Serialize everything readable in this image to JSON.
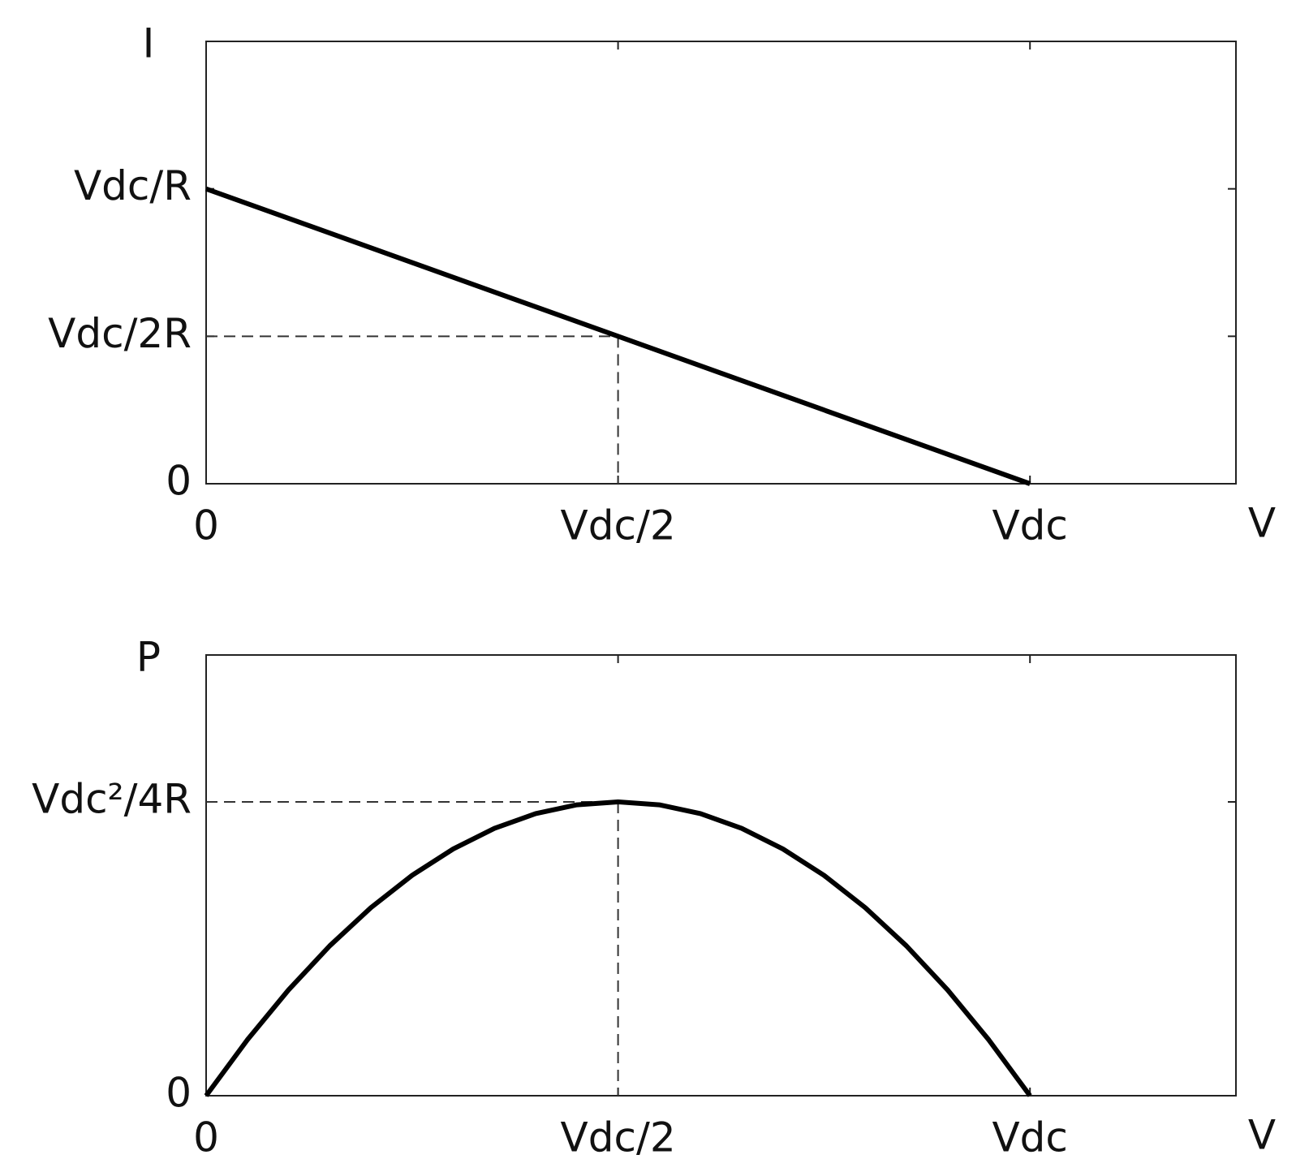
{
  "chart_data": [
    {
      "type": "line",
      "y_label": "I",
      "x_label": "V",
      "x": [
        0,
        0.5,
        1
      ],
      "series": [
        {
          "color": "#000000",
          "values": [
            1,
            0.5,
            0
          ]
        }
      ],
      "xlim": [
        0,
        1.25
      ],
      "ylim": [
        0,
        1.5
      ],
      "xticks": [
        0,
        {
          "value": 0.5,
          "label": "Vdc/2"
        },
        {
          "value": 1,
          "label": "Vdc"
        }
      ],
      "yticks": [
        0,
        {
          "value": 0.5,
          "label": "Vdc/2R"
        },
        {
          "value": 1,
          "label": "Vdc/R"
        }
      ],
      "dashed_guides": true
    },
    {
      "type": "line",
      "y_label": "P",
      "x_label": "V",
      "x": [
        0,
        0.05,
        0.1,
        0.15,
        0.2,
        0.25,
        0.3,
        0.35,
        0.4,
        0.45,
        0.5,
        0.55,
        0.6,
        0.65,
        0.7,
        0.75,
        0.8,
        0.85,
        0.9,
        0.95,
        1
      ],
      "series": [
        {
          "color": "#000000",
          "values": [
            0,
            0.19,
            0.36,
            0.51,
            0.64,
            0.75,
            0.84,
            0.91,
            0.96,
            0.99,
            1,
            0.99,
            0.96,
            0.91,
            0.84,
            0.75,
            0.64,
            0.51,
            0.36,
            0.19,
            0
          ]
        }
      ],
      "xlim": [
        0,
        1.25
      ],
      "ylim": [
        0,
        1.5
      ],
      "xticks": [
        0,
        {
          "value": 0.5,
          "label": "Vdc/2"
        },
        {
          "value": 1,
          "label": "Vdc"
        }
      ],
      "yticks": [
        0,
        {
          "value": 1,
          "label": "Vdc²/4R"
        }
      ],
      "dashed_guides": true
    }
  ]
}
